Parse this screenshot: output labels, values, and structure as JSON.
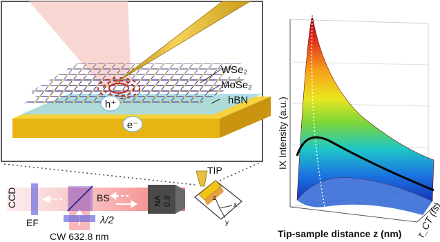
{
  "schematic": {
    "layers": {
      "wse2": {
        "label": "WSe₂",
        "color": "#2f1a6b"
      },
      "mose2": {
        "label": "MoSe₂",
        "color": "#4b2f8f"
      },
      "hbn": {
        "label": "hBN",
        "color": "#9fd9e6"
      }
    },
    "carriers": {
      "hole": "h⁺",
      "electron": "e⁻"
    },
    "substrate_color": "#f2c318",
    "tip_color": "#e0b22a"
  },
  "optics": {
    "ccd": "CCD",
    "ef": "EF",
    "bs": "BS",
    "objective": {
      "na_label": "NA",
      "na_value": "0.8"
    },
    "tip": "TIP",
    "waveplate": "λ/2",
    "laser": "CW 632.8 nm",
    "axes": {
      "z": "z",
      "x": "x",
      "y": "y"
    },
    "beam_color": "#f47b7b"
  },
  "plot": {
    "ylabel": "IX Intensity (a.u.)",
    "xlabel": "Tip-sample distance z (nm)",
    "depth_label": "τ_CT (fs)"
  }
}
